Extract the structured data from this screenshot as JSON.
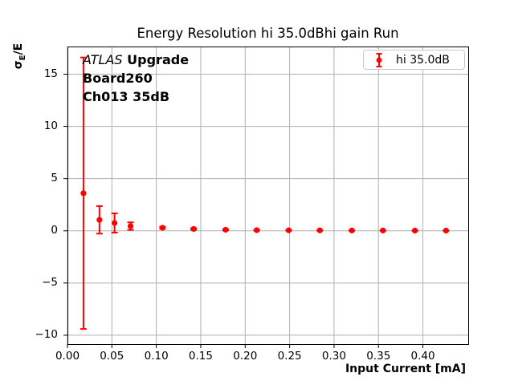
{
  "figure": {
    "title": "Energy Resolution hi 35.0dBhi gain Run",
    "xlabel": "Input Current [mA]",
    "ylabel": {
      "symbol": "σ",
      "subscript": "E",
      "suffix": "/E"
    },
    "annotation": {
      "line1_italic": "ATLAS",
      "line1_bold": " Upgrade",
      "line2": "Board260",
      "line3": "Ch013 35dB"
    },
    "legend": {
      "label": "hi 35.0dB"
    },
    "colors": {
      "series": "#ff0000",
      "grid": "#b0b0b0",
      "spine": "#000000",
      "text": "#000000",
      "background": "#ffffff"
    }
  },
  "chart_data": {
    "type": "scatter",
    "title": "Energy Resolution hi 35.0dBhi gain Run",
    "xlabel": "Input Current [mA]",
    "ylabel": "sigma_E/E",
    "grid": true,
    "legend_position": "upper right",
    "marker": "circle-with-errorbars",
    "xlim": [
      0.0,
      0.451
    ],
    "ylim": [
      -10.85,
      17.65
    ],
    "x_tick_values": [
      0.0,
      0.05,
      0.1,
      0.15,
      0.2,
      0.25,
      0.3,
      0.35,
      0.4
    ],
    "x_tick_labels": [
      "0.00",
      "0.05",
      "0.10",
      "0.15",
      "0.20",
      "0.25",
      "0.30",
      "0.35",
      "0.40"
    ],
    "y_tick_values": [
      15,
      10,
      5,
      0,
      -5,
      -10
    ],
    "y_tick_labels": [
      "15",
      "10",
      "5",
      "0",
      "−5",
      "−10"
    ],
    "series": [
      {
        "name": "hi 35.0dB",
        "x": [
          0.018,
          0.036,
          0.053,
          0.071,
          0.107,
          0.142,
          0.178,
          0.213,
          0.249,
          0.284,
          0.32,
          0.355,
          0.391,
          0.426
        ],
        "y": [
          3.6,
          1.05,
          0.75,
          0.45,
          0.29,
          0.18,
          0.1,
          0.06,
          0.05,
          0.04,
          0.03,
          0.03,
          0.02,
          0.02
        ],
        "yerr": [
          13.0,
          1.32,
          0.92,
          0.36,
          0.1,
          0.07,
          0.05,
          0.04,
          0.03,
          0.03,
          0.02,
          0.02,
          0.015,
          0.01
        ]
      }
    ]
  }
}
